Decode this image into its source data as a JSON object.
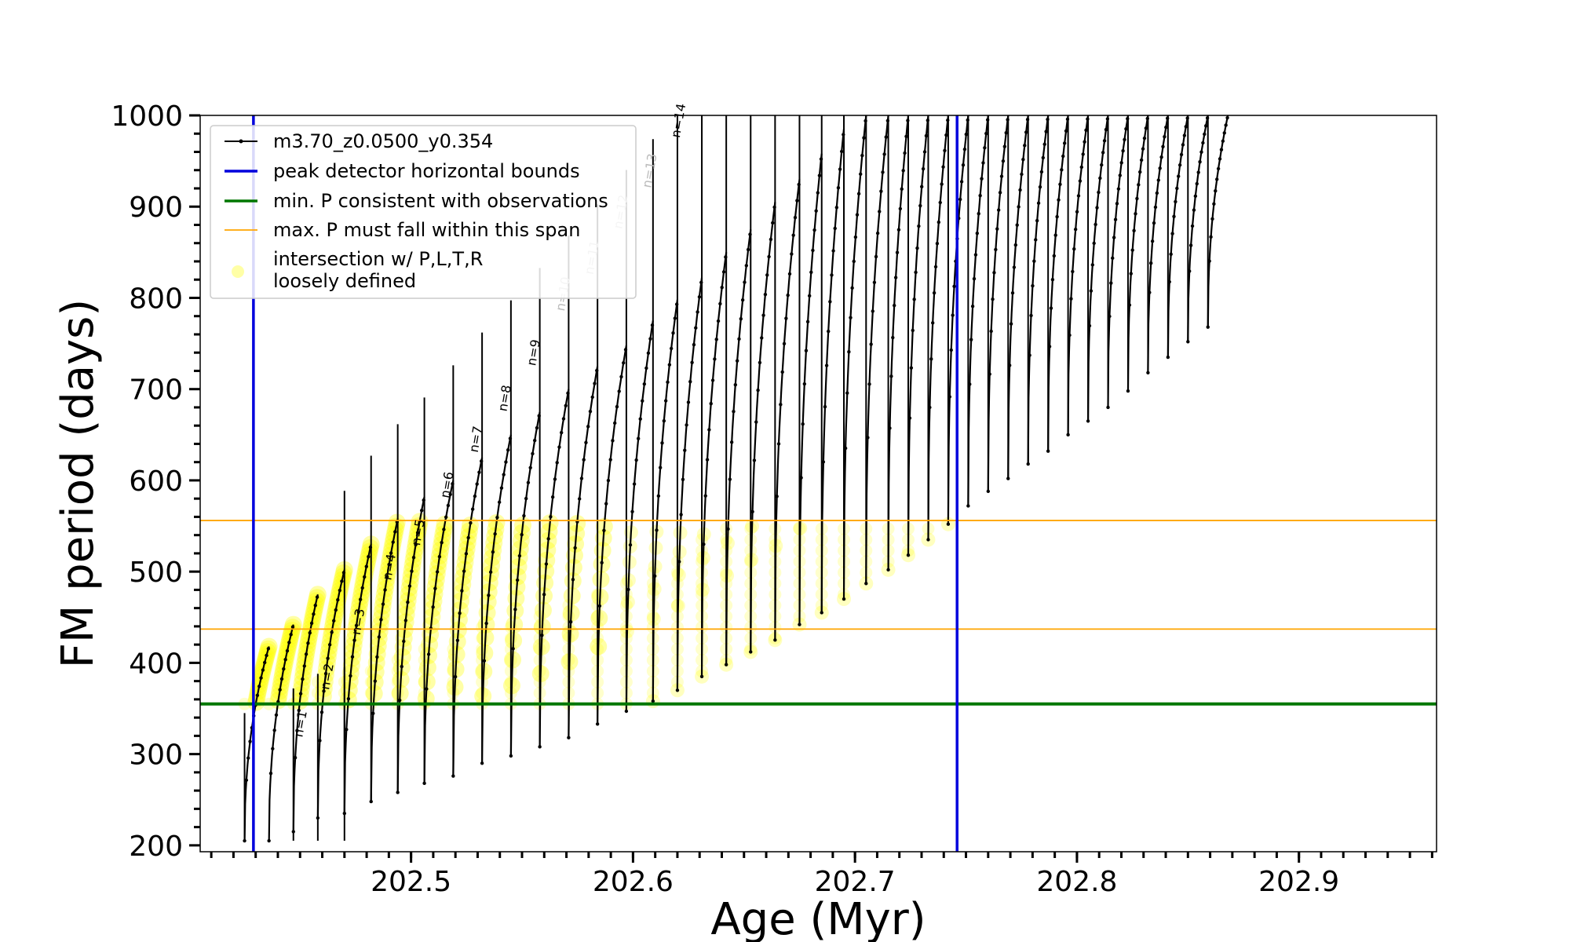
{
  "chart_data": {
    "type": "line",
    "xlabel": "Age (Myr)",
    "ylabel": "FM period (days)",
    "xlim": [
      202.405,
      202.962
    ],
    "ylim": [
      193,
      1000
    ],
    "x_major_ticks": [
      202.5,
      202.6,
      202.7,
      202.8,
      202.9
    ],
    "x_tick_labels": [
      "202.5",
      "202.6",
      "202.7",
      "202.8",
      "202.9"
    ],
    "y_major_ticks": [
      200,
      300,
      400,
      500,
      600,
      700,
      800,
      900,
      1000
    ],
    "y_tick_labels": [
      "200",
      "300",
      "400",
      "500",
      "600",
      "700",
      "800",
      "900",
      "1000"
    ],
    "grid": false,
    "legend_position": "top-left",
    "legend": [
      {
        "label": "m3.70_z0.0500_y0.354",
        "style": "black line with dot markers"
      },
      {
        "label": "peak detector horizontal bounds",
        "style": "blue line"
      },
      {
        "label": "min. P consistent with observations",
        "style": "green line"
      },
      {
        "label": "max. P must fall within this span",
        "style": "orange line"
      },
      {
        "label": "intersection w/ P,L,T,R\nloosely defined",
        "style": "yellow circle"
      }
    ],
    "vertical_lines": {
      "name": "peak detector horizontal bounds",
      "color": "#0000dd",
      "x": [
        202.429,
        202.746
      ]
    },
    "min_period_line": {
      "name": "min. P consistent with observations",
      "color": "#007700",
      "y": 355
    },
    "max_period_span": {
      "name": "max. P must fall within this span",
      "color": "#ffa500",
      "y": [
        437,
        556
      ]
    },
    "pulse_series": {
      "name": "m3.70_z0.0500_y0.354",
      "color": "#000000",
      "pulses": [
        {
          "x0": 202.425,
          "x1": 202.436,
          "start": 205,
          "peak": 418
        },
        {
          "x0": 202.436,
          "x1": 202.447,
          "start": 205,
          "peak": 442
        },
        {
          "x0": 202.447,
          "x1": 202.458,
          "start": 215,
          "peak": 475
        },
        {
          "x0": 202.458,
          "x1": 202.47,
          "start": 230,
          "peak": 502
        },
        {
          "x0": 202.47,
          "x1": 202.482,
          "start": 235,
          "peak": 530
        },
        {
          "x0": 202.482,
          "x1": 202.494,
          "start": 248,
          "peak": 558
        },
        {
          "x0": 202.494,
          "x1": 202.506,
          "start": 258,
          "peak": 582
        },
        {
          "x0": 202.506,
          "x1": 202.519,
          "start": 268,
          "peak": 600
        },
        {
          "x0": 202.519,
          "x1": 202.532,
          "start": 276,
          "peak": 625
        },
        {
          "x0": 202.532,
          "x1": 202.545,
          "start": 290,
          "peak": 650
        },
        {
          "x0": 202.545,
          "x1": 202.558,
          "start": 298,
          "peak": 675
        },
        {
          "x0": 202.558,
          "x1": 202.571,
          "start": 308,
          "peak": 700
        },
        {
          "x0": 202.571,
          "x1": 202.584,
          "start": 318,
          "peak": 725
        },
        {
          "x0": 202.584,
          "x1": 202.597,
          "start": 333,
          "peak": 748
        },
        {
          "x0": 202.597,
          "x1": 202.609,
          "start": 347,
          "peak": 775
        },
        {
          "x0": 202.609,
          "x1": 202.62,
          "start": 358,
          "peak": 798
        },
        {
          "x0": 202.62,
          "x1": 202.631,
          "start": 370,
          "peak": 822
        },
        {
          "x0": 202.631,
          "x1": 202.642,
          "start": 385,
          "peak": 850
        },
        {
          "x0": 202.642,
          "x1": 202.653,
          "start": 398,
          "peak": 875
        },
        {
          "x0": 202.653,
          "x1": 202.664,
          "start": 412,
          "peak": 905
        },
        {
          "x0": 202.664,
          "x1": 202.675,
          "start": 425,
          "peak": 930
        },
        {
          "x0": 202.675,
          "x1": 202.685,
          "start": 442,
          "peak": 958
        },
        {
          "x0": 202.685,
          "x1": 202.695,
          "start": 455,
          "peak": 985
        },
        {
          "x0": 202.695,
          "x1": 202.705,
          "start": 470,
          "peak": 1000
        },
        {
          "x0": 202.705,
          "x1": 202.715,
          "start": 487,
          "peak": 1000
        },
        {
          "x0": 202.715,
          "x1": 202.724,
          "start": 502,
          "peak": 1000
        },
        {
          "x0": 202.724,
          "x1": 202.733,
          "start": 518,
          "peak": 1000
        },
        {
          "x0": 202.733,
          "x1": 202.742,
          "start": 535,
          "peak": 1000
        },
        {
          "x0": 202.742,
          "x1": 202.751,
          "start": 552,
          "peak": 1000
        },
        {
          "x0": 202.751,
          "x1": 202.76,
          "start": 572,
          "peak": 1000
        },
        {
          "x0": 202.76,
          "x1": 202.769,
          "start": 588,
          "peak": 1000
        },
        {
          "x0": 202.769,
          "x1": 202.778,
          "start": 602,
          "peak": 1000
        },
        {
          "x0": 202.778,
          "x1": 202.787,
          "start": 618,
          "peak": 1000
        },
        {
          "x0": 202.787,
          "x1": 202.796,
          "start": 632,
          "peak": 1000
        },
        {
          "x0": 202.796,
          "x1": 202.805,
          "start": 650,
          "peak": 1000
        },
        {
          "x0": 202.805,
          "x1": 202.814,
          "start": 665,
          "peak": 1000
        },
        {
          "x0": 202.814,
          "x1": 202.823,
          "start": 680,
          "peak": 1000
        },
        {
          "x0": 202.823,
          "x1": 202.832,
          "start": 698,
          "peak": 1000
        },
        {
          "x0": 202.832,
          "x1": 202.841,
          "start": 718,
          "peak": 1000
        },
        {
          "x0": 202.841,
          "x1": 202.85,
          "start": 735,
          "peak": 1000
        },
        {
          "x0": 202.85,
          "x1": 202.859,
          "start": 752,
          "peak": 1000
        },
        {
          "x0": 202.859,
          "x1": 202.868,
          "start": 768,
          "peak": 1000
        }
      ],
      "spike_starts": [
        {
          "x": 202.425,
          "y": 345
        },
        {
          "x": 202.447,
          "y": 372
        },
        {
          "x": 202.458,
          "y": 388
        },
        {
          "x": 202.47,
          "y": 395
        }
      ]
    },
    "mode_labels": [
      {
        "text": "n=1",
        "x": 202.451,
        "y": 318
      },
      {
        "text": "n=2",
        "x": 202.463,
        "y": 370
      },
      {
        "text": "n=3",
        "x": 202.477,
        "y": 430
      },
      {
        "text": "n=4",
        "x": 202.491,
        "y": 490
      },
      {
        "text": "n=5",
        "x": 202.504,
        "y": 528
      },
      {
        "text": "n=6",
        "x": 202.517,
        "y": 580
      },
      {
        "text": "n=7",
        "x": 202.53,
        "y": 630
      },
      {
        "text": "n=8",
        "x": 202.543,
        "y": 675
      },
      {
        "text": "n=9",
        "x": 202.556,
        "y": 725
      },
      {
        "text": "n=10",
        "x": 202.569,
        "y": 785
      },
      {
        "text": "n=11",
        "x": 202.582,
        "y": 825
      },
      {
        "text": "n=12",
        "x": 202.595,
        "y": 875
      },
      {
        "text": "n=13",
        "x": 202.608,
        "y": 920
      },
      {
        "text": "n=14",
        "x": 202.621,
        "y": 975
      }
    ],
    "intersection": {
      "name": "intersection w/ P,L,T,R loosely defined",
      "color": "#ffff00",
      "y_range": [
        355,
        556
      ],
      "x_range": [
        202.429,
        202.746
      ]
    }
  }
}
